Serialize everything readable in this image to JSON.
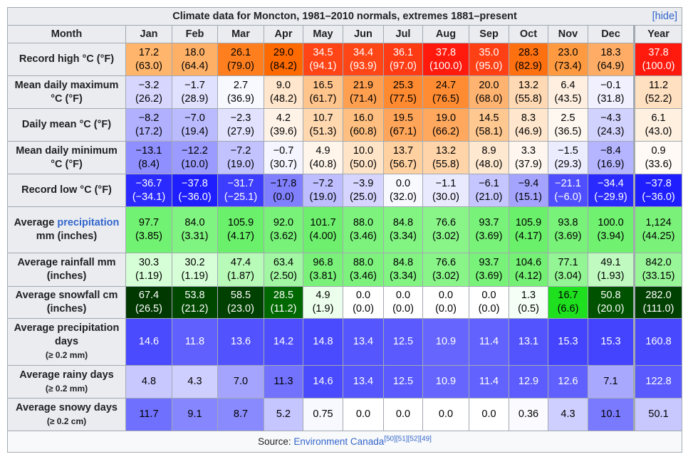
{
  "header": {
    "title": "Climate data for Moncton, 1981–2010 normals, extremes 1881–present",
    "toggle": "[hide]"
  },
  "table": {
    "columns": [
      "Month",
      "Jan",
      "Feb",
      "Mar",
      "Apr",
      "May",
      "Jun",
      "Jul",
      "Aug",
      "Sep",
      "Oct",
      "Nov",
      "Dec",
      "Year"
    ],
    "rows": [
      {
        "label": "Record high °C (°F)",
        "cells": [
          [
            "17.2",
            "(63.0)"
          ],
          [
            "18.0",
            "(64.4)"
          ],
          [
            "26.1",
            "(79.0)"
          ],
          [
            "29.0",
            "(84.2)"
          ],
          [
            "34.5",
            "(94.1)"
          ],
          [
            "34.4",
            "(93.9)"
          ],
          [
            "36.1",
            "(97.0)"
          ],
          [
            "37.8",
            "(100.0)"
          ],
          [
            "35.0",
            "(95.0)"
          ],
          [
            "28.3",
            "(82.9)"
          ],
          [
            "23.0",
            "(73.4)"
          ],
          [
            "18.3",
            "(64.9)"
          ],
          [
            "37.8",
            "(100.0)"
          ]
        ],
        "colors": [
          "#ffb56b",
          "#ffb067",
          "#ff7f1f",
          "#ff6a00",
          "#ff4416",
          "#ff4616",
          "#ff3b14",
          "#ff1a0d",
          "#ff3f14",
          "#ff7010",
          "#ff9a40",
          "#ffad66",
          "#ff1a0d"
        ]
      },
      {
        "label": "Mean daily maximum °C (°F)",
        "cells": [
          [
            "−3.2",
            "(26.2)"
          ],
          [
            "−1.7",
            "(28.9)"
          ],
          [
            "2.7",
            "(36.9)"
          ],
          [
            "9.0",
            "(48.2)"
          ],
          [
            "16.5",
            "(61.7)"
          ],
          [
            "21.9",
            "(71.4)"
          ],
          [
            "25.3",
            "(77.5)"
          ],
          [
            "24.7",
            "(76.5)"
          ],
          [
            "20.0",
            "(68.0)"
          ],
          [
            "13.2",
            "(55.8)"
          ],
          [
            "6.4",
            "(43.5)"
          ],
          [
            "−0.1",
            "(31.8)"
          ],
          [
            "11.2",
            "(52.2)"
          ]
        ],
        "colors": [
          "#d6d6ff",
          "#e0e0ff",
          "#f8f8ff",
          "#ffe6cc",
          "#ffc58d",
          "#ffa050",
          "#ff8a30",
          "#ff8c33",
          "#ffb370",
          "#ffd9b3",
          "#ffefe0",
          "#f0f0ff",
          "#ffe0c0"
        ]
      },
      {
        "label": "Daily mean °C (°F)",
        "cells": [
          [
            "−8.2",
            "(17.2)"
          ],
          [
            "−7.0",
            "(19.4)"
          ],
          [
            "−2.3",
            "(27.9)"
          ],
          [
            "4.2",
            "(39.6)"
          ],
          [
            "10.7",
            "(51.3)"
          ],
          [
            "16.0",
            "(60.8)"
          ],
          [
            "19.5",
            "(67.1)"
          ],
          [
            "19.0",
            "(66.2)"
          ],
          [
            "14.5",
            "(58.1)"
          ],
          [
            "8.3",
            "(46.9)"
          ],
          [
            "2.5",
            "(36.5)"
          ],
          [
            "−4.3",
            "(24.3)"
          ],
          [
            "6.1",
            "(43.0)"
          ]
        ],
        "colors": [
          "#b0b0ff",
          "#babaff",
          "#e2e2ff",
          "#fff3e8",
          "#ffd8b0",
          "#ffbf80",
          "#ffa55a",
          "#ffa85e",
          "#ffc890",
          "#ffe6cc",
          "#fff8f0",
          "#d2d2ff",
          "#fff0e0"
        ]
      },
      {
        "label": "Mean daily minimum °C (°F)",
        "cells": [
          [
            "−13.1",
            "(8.4)"
          ],
          [
            "−12.2",
            "(10.0)"
          ],
          [
            "−7.2",
            "(19.0)"
          ],
          [
            "−0.7",
            "(30.7)"
          ],
          [
            "4.9",
            "(40.8)"
          ],
          [
            "10.0",
            "(50.0)"
          ],
          [
            "13.7",
            "(56.7)"
          ],
          [
            "13.2",
            "(55.8)"
          ],
          [
            "8.9",
            "(48.0)"
          ],
          [
            "3.3",
            "(37.9)"
          ],
          [
            "−1.5",
            "(29.3)"
          ],
          [
            "−8.4",
            "(16.9)"
          ],
          [
            "0.9",
            "(33.6)"
          ]
        ],
        "colors": [
          "#8f8fff",
          "#9a9aff",
          "#c2c2ff",
          "#f5f5ff",
          "#fff5eb",
          "#ffe4c8",
          "#ffd0a0",
          "#ffd4a8",
          "#ffe8d0",
          "#fff7ef",
          "#ececff",
          "#b4b4ff",
          "#fffaf5"
        ]
      },
      {
        "label": "Record low °C (°F)",
        "cells": [
          [
            "−36.7",
            "(−34.1)"
          ],
          [
            "−37.8",
            "(−36.0)"
          ],
          [
            "−31.7",
            "(−25.1)"
          ],
          [
            "−17.8",
            "(0.0)"
          ],
          [
            "−7.2",
            "(19.0)"
          ],
          [
            "−3.9",
            "(25.0)"
          ],
          [
            "0.0",
            "(32.0)"
          ],
          [
            "−1.1",
            "(30.0)"
          ],
          [
            "−6.1",
            "(21.0)"
          ],
          [
            "−9.4",
            "(15.1)"
          ],
          [
            "−21.1",
            "(−6.0)"
          ],
          [
            "−34.4",
            "(−29.9)"
          ],
          [
            "−37.8",
            "(−36.0)"
          ]
        ],
        "colors": [
          "#2a2aff",
          "#1e1eff",
          "#3d3dff",
          "#8080ff",
          "#bdbdff",
          "#d5d5ff",
          "#f8f8ff",
          "#eaeaff",
          "#c5c5ff",
          "#a4a4ff",
          "#4f4fff",
          "#2a2aff",
          "#1e1eff"
        ]
      },
      {
        "label": "Average ",
        "link": "precipitation",
        "label_end": " mm (inches)",
        "cells": [
          [
            "97.7",
            "(3.85)"
          ],
          [
            "84.0",
            "(3.31)"
          ],
          [
            "105.9",
            "(4.17)"
          ],
          [
            "92.0",
            "(3.62)"
          ],
          [
            "101.7",
            "(4.00)"
          ],
          [
            "88.0",
            "(3.46)"
          ],
          [
            "84.8",
            "(3.34)"
          ],
          [
            "76.6",
            "(3.02)"
          ],
          [
            "93.7",
            "(3.69)"
          ],
          [
            "105.9",
            "(4.17)"
          ],
          [
            "93.8",
            "(3.69)"
          ],
          [
            "100.0",
            "(3.94)"
          ],
          [
            "1,124",
            "(44.25)"
          ]
        ],
        "colors": [
          "#72f272",
          "#80f480",
          "#6af06a",
          "#79f279",
          "#6ef06e",
          "#7df37d",
          "#82f482",
          "#89f589",
          "#78f278",
          "#6af06a",
          "#78f278",
          "#70f170",
          "#7af27a"
        ]
      },
      {
        "label": "Average rainfall mm (inches)",
        "cells": [
          [
            "30.3",
            "(1.19)"
          ],
          [
            "30.2",
            "(1.19)"
          ],
          [
            "47.4",
            "(1.87)"
          ],
          [
            "63.4",
            "(2.50)"
          ],
          [
            "96.8",
            "(3.81)"
          ],
          [
            "88.0",
            "(3.46)"
          ],
          [
            "84.8",
            "(3.34)"
          ],
          [
            "76.6",
            "(3.02)"
          ],
          [
            "93.7",
            "(3.69)"
          ],
          [
            "104.6",
            "(4.12)"
          ],
          [
            "77.1",
            "(3.04)"
          ],
          [
            "49.1",
            "(1.93)"
          ],
          [
            "842.0",
            "(33.15)"
          ]
        ],
        "colors": [
          "#d7ffd7",
          "#d7ffd7",
          "#b8fab8",
          "#a2f7a2",
          "#7af27a",
          "#7df37d",
          "#82f482",
          "#89f589",
          "#78f278",
          "#74f174",
          "#93f593",
          "#c0fac0",
          "#98f698"
        ]
      },
      {
        "label": "Average snowfall cm (inches)",
        "cells": [
          [
            "67.4",
            "(26.5)"
          ],
          [
            "53.8",
            "(21.2)"
          ],
          [
            "58.5",
            "(23.0)"
          ],
          [
            "28.5",
            "(11.2)"
          ],
          [
            "4.9",
            "(1.9)"
          ],
          [
            "0.0",
            "(0.0)"
          ],
          [
            "0.0",
            "(0.0)"
          ],
          [
            "0.0",
            "(0.0)"
          ],
          [
            "0.0",
            "(0.0)"
          ],
          [
            "1.3",
            "(0.5)"
          ],
          [
            "16.7",
            "(6.6)"
          ],
          [
            "50.8",
            "(20.0)"
          ],
          [
            "282.0",
            "(111.0)"
          ]
        ],
        "colors": [
          "#003800",
          "#004800",
          "#004000",
          "#006800",
          "#ecffec",
          "#ffffff",
          "#ffffff",
          "#ffffff",
          "#ffffff",
          "#f5fff5",
          "#1fe01f",
          "#005200",
          "#004000"
        ]
      },
      {
        "label": "Average precipitation days",
        "note": "(≥ 0.2 mm)",
        "cells": [
          [
            "14.6"
          ],
          [
            "11.8"
          ],
          [
            "13.6"
          ],
          [
            "14.2"
          ],
          [
            "14.8"
          ],
          [
            "13.4"
          ],
          [
            "12.5"
          ],
          [
            "10.9"
          ],
          [
            "11.4"
          ],
          [
            "13.1"
          ],
          [
            "15.3"
          ],
          [
            "15.3"
          ],
          [
            "160.8"
          ]
        ],
        "colors": [
          "#4a4aff",
          "#6060ff",
          "#5252ff",
          "#4e4eff",
          "#4a4aff",
          "#5656ff",
          "#5a5aff",
          "#6666ff",
          "#6262ff",
          "#5454ff",
          "#4444ff",
          "#4444ff",
          "#4848ff"
        ]
      },
      {
        "label": "Average rainy days",
        "note": "(≥ 0.2 mm)",
        "cells": [
          [
            "4.8"
          ],
          [
            "4.3"
          ],
          [
            "7.0"
          ],
          [
            "11.3"
          ],
          [
            "14.6"
          ],
          [
            "13.4"
          ],
          [
            "12.5"
          ],
          [
            "10.9"
          ],
          [
            "11.4"
          ],
          [
            "12.9"
          ],
          [
            "12.6"
          ],
          [
            "7.1"
          ],
          [
            "122.8"
          ]
        ],
        "colors": [
          "#c8c8ff",
          "#cfcfff",
          "#a4a4ff",
          "#7272ff",
          "#4a4aff",
          "#5656ff",
          "#5a5aff",
          "#6666ff",
          "#6262ff",
          "#5c5cff",
          "#6060ff",
          "#a8a8ff",
          "#5a5aff"
        ]
      },
      {
        "label": "Average snowy days",
        "note": "(≥ 0.2 cm)",
        "cells": [
          [
            "11.7"
          ],
          [
            "9.1"
          ],
          [
            "8.7"
          ],
          [
            "5.2"
          ],
          [
            "0.75"
          ],
          [
            "0.0"
          ],
          [
            "0.0"
          ],
          [
            "0.0"
          ],
          [
            "0.0"
          ],
          [
            "0.36"
          ],
          [
            "4.3"
          ],
          [
            "10.1"
          ],
          [
            "50.1"
          ]
        ],
        "colors": [
          "#7070ff",
          "#8686ff",
          "#8a8aff",
          "#c5c5ff",
          "#f8f8ff",
          "#ffffff",
          "#ffffff",
          "#ffffff",
          "#ffffff",
          "#fafaff",
          "#cfcfff",
          "#7a7aff",
          "#c8c8ff"
        ]
      }
    ]
  },
  "source": {
    "label": "Source: ",
    "link": "Environment Canada",
    "refs": [
      "[50]",
      "[51]",
      "[52]",
      "[49]"
    ]
  }
}
